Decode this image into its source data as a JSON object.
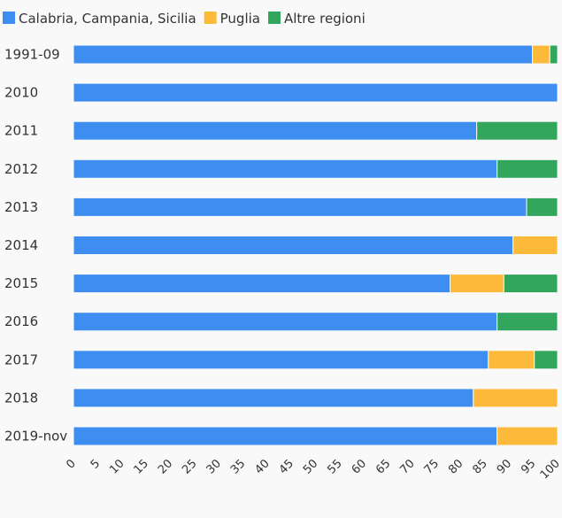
{
  "chart_data": {
    "type": "bar",
    "orientation": "horizontal",
    "stacked": true,
    "categories": [
      "1991-09",
      "2010",
      "2011",
      "2012",
      "2013",
      "2014",
      "2015",
      "2016",
      "2017",
      "2018",
      "2019-nov"
    ],
    "series": [
      {
        "name": "Calabria, Campania, Sicilia",
        "color": "#3d8ef0",
        "values": [
          94.8,
          100,
          83.3,
          87.5,
          93.6,
          90.8,
          77.8,
          87.5,
          85.7,
          82.6,
          87.5
        ]
      },
      {
        "name": "Puglia",
        "color": "#fdb93a",
        "values": [
          3.6,
          0,
          0,
          0,
          0,
          9.2,
          11.1,
          0,
          9.5,
          17.4,
          12.5
        ]
      },
      {
        "name": "Altre regioni",
        "color": "#33a65d",
        "values": [
          1.6,
          0,
          16.7,
          12.5,
          6.4,
          0,
          11.1,
          12.5,
          4.8,
          0,
          0
        ]
      }
    ],
    "xlim": [
      0,
      100
    ],
    "xticks": [
      0,
      5,
      10,
      15,
      20,
      25,
      30,
      35,
      40,
      45,
      50,
      55,
      60,
      65,
      70,
      75,
      80,
      85,
      90,
      95,
      100
    ],
    "legend_position": "top-left",
    "grid": false
  }
}
